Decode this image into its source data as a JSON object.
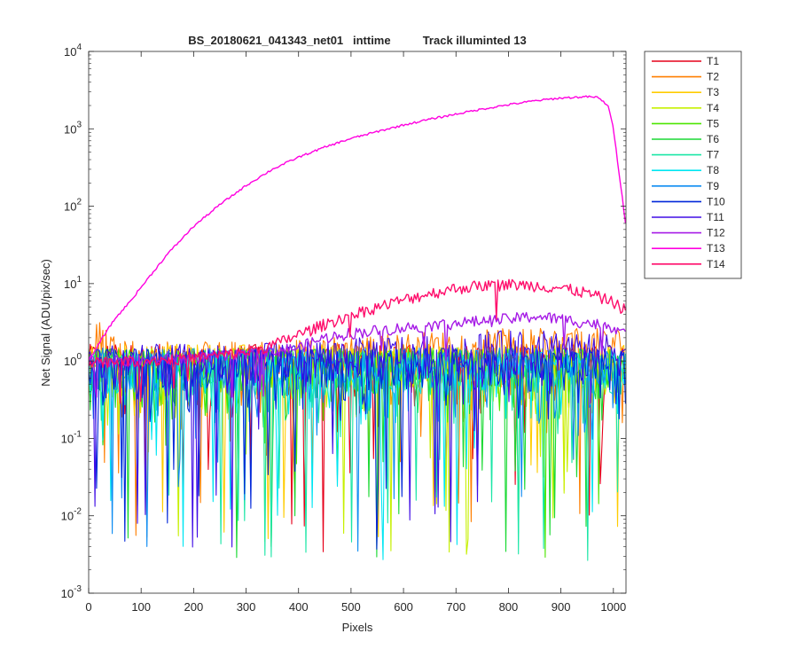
{
  "chart_data": {
    "type": "line",
    "title": "BS_20180621_041343_net01   inttime          Track illuminted 13",
    "xlabel": "Pixels",
    "ylabel": "Net Signal (ADU/pix/sec)",
    "xlim": [
      0,
      1024
    ],
    "ylim": [
      0.001,
      10000
    ],
    "yscale": "log",
    "grid": false,
    "legend_position": "outside-top-right",
    "x_ticks": [
      {
        "value": 0,
        "label": "0"
      },
      {
        "value": 100,
        "label": "100"
      },
      {
        "value": 200,
        "label": "200"
      },
      {
        "value": 300,
        "label": "300"
      },
      {
        "value": 400,
        "label": "400"
      },
      {
        "value": 500,
        "label": "500"
      },
      {
        "value": 600,
        "label": "600"
      },
      {
        "value": 700,
        "label": "700"
      },
      {
        "value": 800,
        "label": "800"
      },
      {
        "value": 900,
        "label": "900"
      },
      {
        "value": 1000,
        "label": "1000"
      }
    ],
    "y_ticks": [
      {
        "value": 0.001,
        "base": "10",
        "exp": "-3"
      },
      {
        "value": 0.01,
        "base": "10",
        "exp": "-2"
      },
      {
        "value": 0.1,
        "base": "10",
        "exp": "-1"
      },
      {
        "value": 1,
        "base": "10",
        "exp": "0"
      },
      {
        "value": 10,
        "base": "10",
        "exp": "1"
      },
      {
        "value": 100,
        "base": "10",
        "exp": "2"
      },
      {
        "value": 1000,
        "base": "10",
        "exp": "3"
      },
      {
        "value": 10000,
        "base": "10",
        "exp": "4"
      }
    ],
    "series": [
      {
        "name": "T1",
        "color": "#e6001a",
        "x": [
          0,
          50,
          100,
          200,
          300,
          400,
          500,
          600,
          700,
          800,
          900,
          1000,
          1024
        ],
        "y": [
          1.0,
          1.0,
          1.0,
          1.0,
          1.0,
          1.0,
          1.0,
          1.0,
          1.0,
          1.0,
          1.0,
          1.0,
          1.0
        ]
      },
      {
        "name": "T2",
        "color": "#ff7f00",
        "x": [
          0,
          10,
          20,
          50,
          100,
          200,
          300,
          400,
          500,
          600,
          700,
          800,
          900,
          1000,
          1024
        ],
        "y": [
          1.3,
          2.2,
          2.5,
          1.3,
          1.1,
          1.1,
          1.1,
          1.2,
          1.3,
          1.4,
          1.5,
          1.6,
          1.6,
          1.6,
          1.7
        ]
      },
      {
        "name": "T3",
        "color": "#ffcc00",
        "x": [
          0,
          100,
          200,
          300,
          400,
          500,
          600,
          700,
          800,
          900,
          1000,
          1024
        ],
        "y": [
          1.0,
          1.0,
          1.0,
          1.0,
          1.0,
          1.0,
          1.0,
          1.0,
          1.0,
          1.0,
          1.0,
          1.0
        ]
      },
      {
        "name": "T4",
        "color": "#c6f000",
        "x": [
          0,
          100,
          200,
          300,
          400,
          480,
          500,
          600,
          700,
          800,
          900,
          1000,
          1024
        ],
        "y": [
          0.9,
          0.9,
          0.9,
          0.9,
          0.9,
          0.9,
          0.9,
          0.9,
          0.9,
          0.9,
          0.9,
          0.9,
          0.9
        ]
      },
      {
        "name": "T5",
        "color": "#4ce600",
        "x": [
          0,
          100,
          200,
          300,
          400,
          500,
          600,
          700,
          800,
          900,
          1000,
          1024
        ],
        "y": [
          0.9,
          0.9,
          0.9,
          0.9,
          0.9,
          0.9,
          0.9,
          0.9,
          0.9,
          0.9,
          0.9,
          0.9
        ]
      },
      {
        "name": "T6",
        "color": "#1ad933",
        "x": [
          0,
          100,
          200,
          300,
          400,
          500,
          600,
          700,
          800,
          900,
          1000,
          1024
        ],
        "y": [
          0.9,
          0.9,
          0.9,
          0.9,
          0.9,
          0.9,
          0.9,
          0.9,
          0.9,
          0.9,
          0.9,
          0.9
        ]
      },
      {
        "name": "T7",
        "color": "#1ae6a6",
        "x": [
          0,
          100,
          200,
          300,
          400,
          500,
          600,
          700,
          800,
          900,
          1000,
          1024
        ],
        "y": [
          0.8,
          0.8,
          0.8,
          0.8,
          0.8,
          0.8,
          0.8,
          0.8,
          0.8,
          0.8,
          0.8,
          0.8
        ]
      },
      {
        "name": "T8",
        "color": "#00e6f2",
        "x": [
          0,
          100,
          200,
          300,
          400,
          500,
          600,
          700,
          800,
          900,
          1000,
          1024
        ],
        "y": [
          0.8,
          0.8,
          0.8,
          0.8,
          0.8,
          0.8,
          0.8,
          0.8,
          0.8,
          0.8,
          0.8,
          0.8
        ]
      },
      {
        "name": "T9",
        "color": "#0d8cf2",
        "x": [
          0,
          100,
          200,
          300,
          400,
          500,
          600,
          700,
          800,
          900,
          1000,
          1024
        ],
        "y": [
          0.9,
          0.9,
          0.9,
          0.9,
          0.9,
          0.9,
          0.9,
          0.9,
          0.9,
          0.9,
          0.9,
          0.9
        ]
      },
      {
        "name": "T10",
        "color": "#0026d9",
        "x": [
          0,
          100,
          200,
          300,
          400,
          500,
          600,
          700,
          800,
          900,
          1000,
          1024
        ],
        "y": [
          0.9,
          0.9,
          0.9,
          0.9,
          0.9,
          0.9,
          0.9,
          0.9,
          0.9,
          0.9,
          0.9,
          0.9
        ]
      },
      {
        "name": "T11",
        "color": "#400de6",
        "x": [
          0,
          100,
          200,
          300,
          400,
          500,
          600,
          700,
          800,
          900,
          1000,
          1024
        ],
        "y": [
          1.0,
          1.0,
          1.0,
          1.0,
          1.1,
          1.2,
          1.3,
          1.4,
          1.5,
          1.5,
          1.4,
          1.3
        ]
      },
      {
        "name": "T12",
        "color": "#a61ae6",
        "x": [
          0,
          100,
          200,
          300,
          400,
          450,
          500,
          600,
          700,
          800,
          850,
          900,
          1000,
          1024
        ],
        "y": [
          1.0,
          1.0,
          1.1,
          1.2,
          1.5,
          2.0,
          2.3,
          2.7,
          3.1,
          3.5,
          3.8,
          3.5,
          2.8,
          2.3
        ]
      },
      {
        "name": "T13",
        "color": "#ff00e0",
        "x": [
          0,
          30,
          50,
          80,
          100,
          150,
          200,
          250,
          300,
          350,
          400,
          450,
          500,
          550,
          600,
          650,
          700,
          750,
          800,
          850,
          900,
          950,
          970,
          990,
          1000,
          1010,
          1024
        ],
        "y": [
          1.0,
          2.2,
          3.5,
          6.0,
          9.0,
          24,
          55,
          105,
          185,
          300,
          430,
          580,
          750,
          920,
          1120,
          1330,
          1550,
          1800,
          2050,
          2300,
          2500,
          2600,
          2550,
          2000,
          1000,
          300,
          55
        ]
      },
      {
        "name": "T14",
        "color": "#ff0d6b",
        "x": [
          0,
          100,
          200,
          300,
          350,
          400,
          450,
          500,
          550,
          600,
          650,
          700,
          750,
          800,
          850,
          900,
          950,
          1000,
          1024
        ],
        "y": [
          1.0,
          1.0,
          1.1,
          1.3,
          1.6,
          2.2,
          3.0,
          4.0,
          5.0,
          6.2,
          7.5,
          8.7,
          9.5,
          9.8,
          9.5,
          8.8,
          7.6,
          5.8,
          4.5
        ]
      }
    ]
  }
}
